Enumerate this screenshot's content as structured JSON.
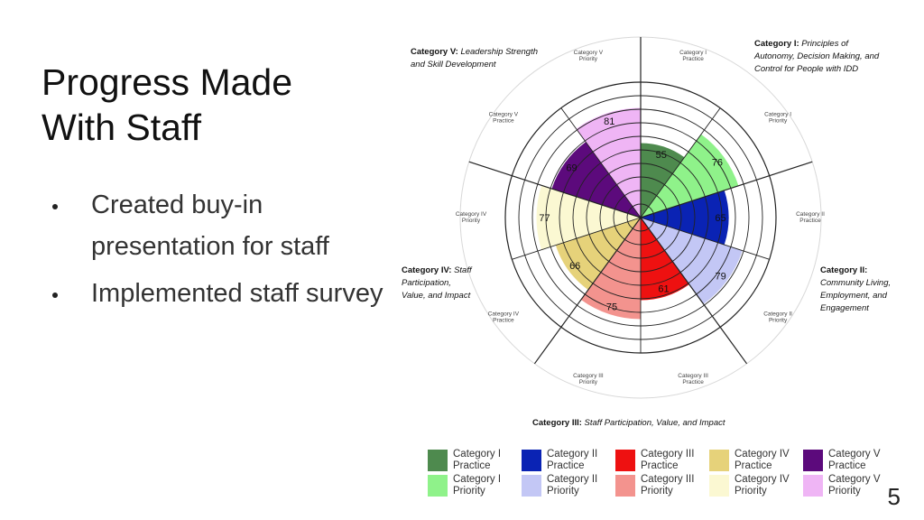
{
  "slide": {
    "title_line1": "Progress Made",
    "title_line2": "With Staff",
    "bullets": [
      "Created buy-in presentation for staff",
      "Implemented staff survey"
    ],
    "page_number": "5"
  },
  "chart_data": {
    "type": "polar-area",
    "scale_max": 100,
    "rings": 10,
    "categories": [
      {
        "heading": "Category I:",
        "description": "Principles of Autonomy, Decision Making, and Control for People with IDD"
      },
      {
        "heading": "Category II:",
        "description": "Community Living, Employment, and Engagement"
      },
      {
        "heading": "Category III:",
        "description": "Staff Participation, Value, and Impact"
      },
      {
        "heading": "Category IV:",
        "description": "Staff Participation, Value, and Impact"
      },
      {
        "heading": "Category V:",
        "description": "Leadership Strength and Skill Development"
      }
    ],
    "series": [
      {
        "name": "Category I Practice",
        "value": 55,
        "color": "#4e8a4e",
        "outer_label": "Category I Practice"
      },
      {
        "name": "Category I Priority",
        "value": 76,
        "color": "#8ff28a",
        "outer_label": "Category I Priority"
      },
      {
        "name": "Category II Practice",
        "value": 65,
        "color": "#0a23b4",
        "outer_label": "Category II Practice"
      },
      {
        "name": "Category II Priority",
        "value": 79,
        "color": "#c3c7f5",
        "outer_label": "Category II Priority"
      },
      {
        "name": "Category III Practice",
        "value": 61,
        "color": "#ee1111",
        "outer_label": "Category III Practice"
      },
      {
        "name": "Category III Priority",
        "value": 75,
        "color": "#f3938e",
        "outer_label": "Category III Priority"
      },
      {
        "name": "Category IV Practice",
        "value": 66,
        "color": "#e6d27a",
        "outer_label": "Category IV Practice"
      },
      {
        "name": "Category IV Priority",
        "value": 77,
        "color": "#fbf8d2",
        "outer_label": "Category IV Priority"
      },
      {
        "name": "Category V Practice",
        "value": 69,
        "color": "#5c0a7c",
        "outer_label": "Category V Practice"
      },
      {
        "name": "Category V Priority",
        "value": 81,
        "color": "#efb5f5",
        "outer_label": "Category V Priority"
      }
    ],
    "legend": [
      {
        "line1": "Category I",
        "line2": "Practice",
        "color": "#4e8a4e"
      },
      {
        "line1": "Category II",
        "line2": "Practice",
        "color": "#0a23b4"
      },
      {
        "line1": "Category III",
        "line2": "Practice",
        "color": "#ee1111"
      },
      {
        "line1": "Category IV",
        "line2": "Practice",
        "color": "#e6d27a"
      },
      {
        "line1": "Category V",
        "line2": "Practice",
        "color": "#5c0a7c"
      },
      {
        "line1": "Category I",
        "line2": "Priority",
        "color": "#8ff28a"
      },
      {
        "line1": "Category II",
        "line2": "Priority",
        "color": "#c3c7f5"
      },
      {
        "line1": "Category III",
        "line2": "Priority",
        "color": "#f3938e"
      },
      {
        "line1": "Category IV",
        "line2": "Priority",
        "color": "#fbf8d2"
      },
      {
        "line1": "Category V",
        "line2": "Priority",
        "color": "#efb5f5"
      }
    ]
  }
}
